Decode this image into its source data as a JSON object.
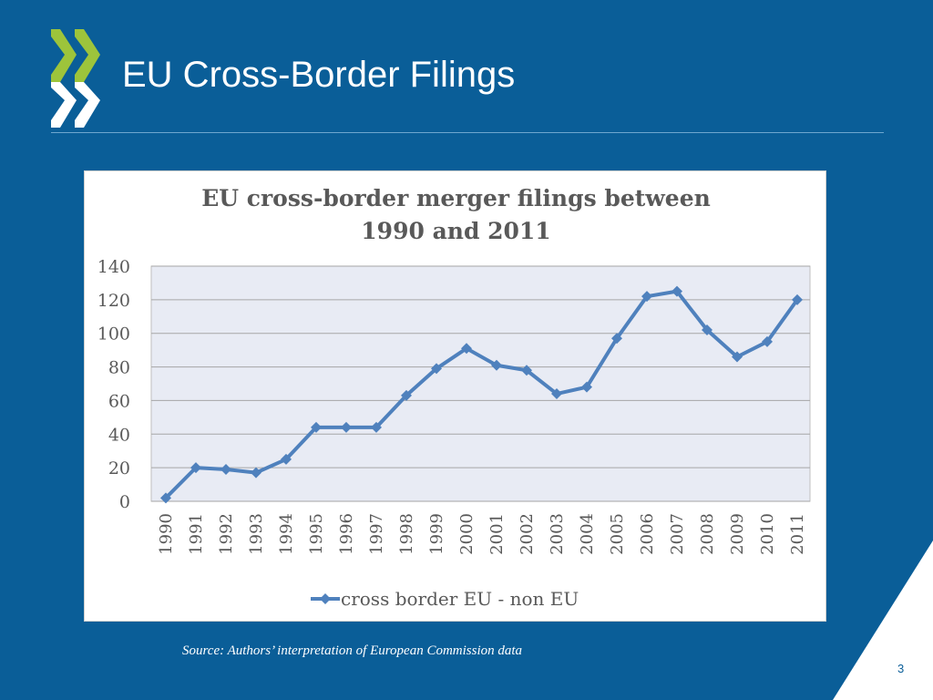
{
  "slide": {
    "title": "EU Cross-Border Filings",
    "source": "Source: Authors’ interpretation of European Commission data",
    "page_number": "3"
  },
  "colors": {
    "background": "#0a5e98",
    "logo_green": "#9dc43b",
    "logo_white": "#ffffff",
    "series_line": "#4f81bd",
    "plot_bg": "#e8ebf4"
  },
  "chart_data": {
    "type": "line",
    "title_lines": [
      "EU cross-border merger filings between",
      "1990 and 2011"
    ],
    "categories": [
      "1990",
      "1991",
      "1992",
      "1993",
      "1994",
      "1995",
      "1996",
      "1997",
      "1998",
      "1999",
      "2000",
      "2001",
      "2002",
      "2003",
      "2004",
      "2005",
      "2006",
      "2007",
      "2008",
      "2009",
      "2010",
      "2011"
    ],
    "series": [
      {
        "name": "cross border EU - non EU",
        "values": [
          2,
          20,
          19,
          17,
          25,
          44,
          44,
          44,
          63,
          79,
          91,
          81,
          78,
          64,
          68,
          97,
          122,
          125,
          102,
          86,
          95,
          120
        ]
      }
    ],
    "y_ticks": [
      "0",
      "20",
      "40",
      "60",
      "80",
      "100",
      "120",
      "140"
    ],
    "ylim": [
      0,
      140
    ],
    "xlabel": "",
    "ylabel": "",
    "grid": true,
    "legend_position": "bottom"
  }
}
